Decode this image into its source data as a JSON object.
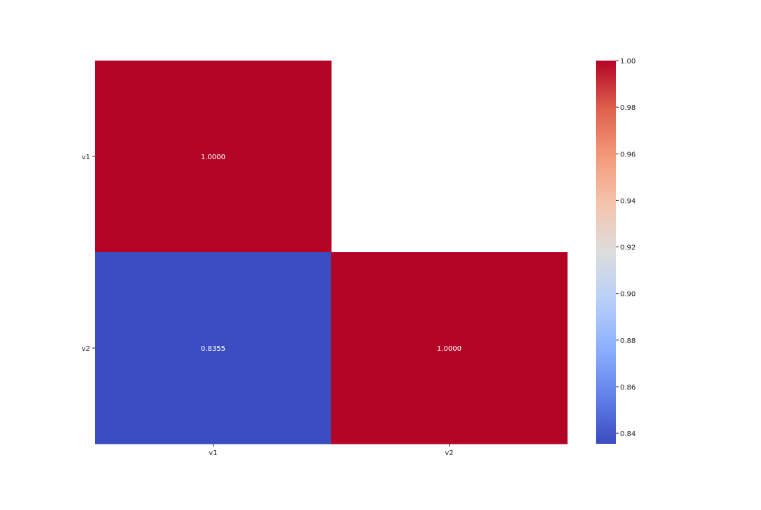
{
  "chart_data": {
    "type": "heatmap",
    "title": "",
    "xlabel": "",
    "ylabel": "",
    "x_categories": [
      "v1",
      "v2"
    ],
    "y_categories": [
      "v1",
      "v2"
    ],
    "matrix": [
      [
        1.0,
        null
      ],
      [
        0.8355,
        1.0
      ]
    ],
    "annotations": [
      [
        "1.0000",
        ""
      ],
      [
        "0.8355",
        "1.0000"
      ]
    ],
    "masked": "upper triangle",
    "colormap": "coolwarm",
    "colors": {
      "low": "#3b4cc0",
      "high": "#b40426",
      "annotation_text": "#ffffff",
      "axis_text": "#262626"
    },
    "colorbar": {
      "min": 0.8355,
      "max": 1.0,
      "ticks": [
        0.84,
        0.86,
        0.88,
        0.9,
        0.92,
        0.94,
        0.96,
        0.98,
        1.0
      ],
      "tick_labels": [
        "0.84",
        "0.86",
        "0.88",
        "0.90",
        "0.92",
        "0.94",
        "0.96",
        "0.98",
        "1.00"
      ],
      "position": "right"
    },
    "grid": false,
    "legend": "none"
  }
}
